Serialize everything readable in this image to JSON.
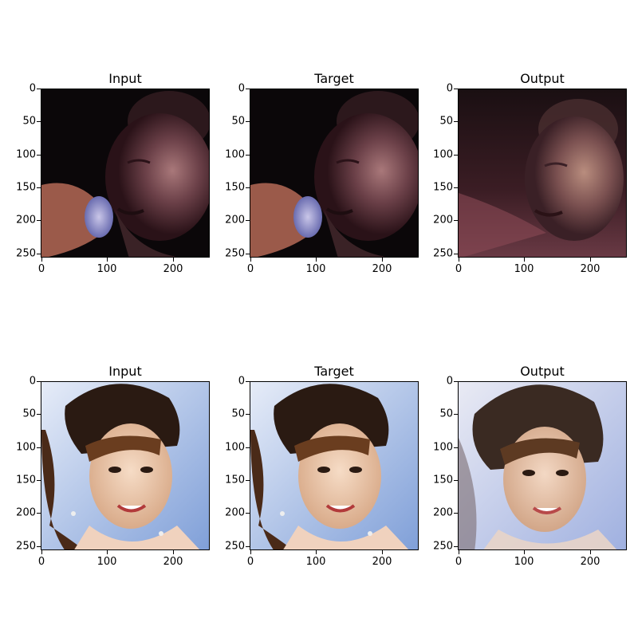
{
  "figure": {
    "rows": [
      {
        "panels": [
          {
            "title": "Input",
            "image": "singer-with-microphone-photo"
          },
          {
            "title": "Target",
            "image": "singer-with-microphone-photo"
          },
          {
            "title": "Output",
            "image": "singer-reconstruction-photo"
          }
        ]
      },
      {
        "panels": [
          {
            "title": "Input",
            "image": "smiling-woman-portrait-photo"
          },
          {
            "title": "Target",
            "image": "smiling-woman-portrait-photo"
          },
          {
            "title": "Output",
            "image": "smiling-woman-reconstruction-photo"
          }
        ]
      }
    ],
    "y_ticks": [
      "0",
      "50",
      "100",
      "150",
      "200",
      "250"
    ],
    "x_ticks": [
      "0",
      "100",
      "200"
    ]
  }
}
